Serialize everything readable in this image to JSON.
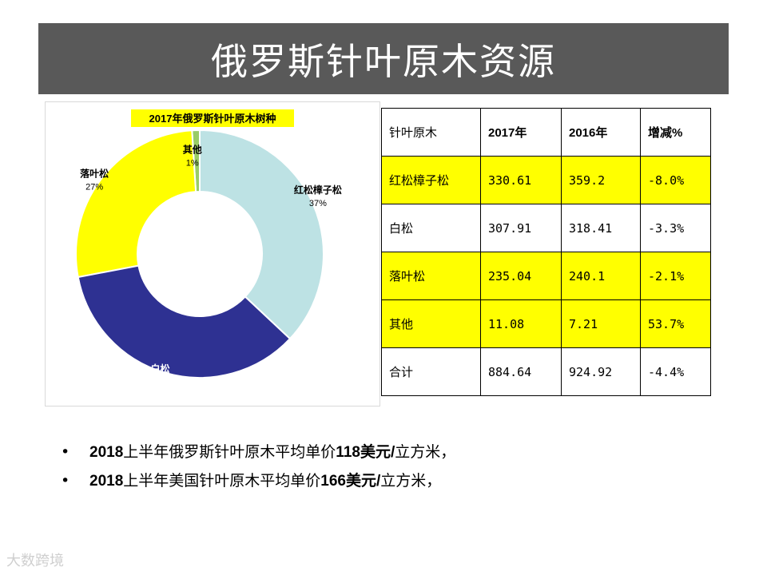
{
  "title": "俄罗斯针叶原木资源",
  "colors": {
    "slice_red_pine": "#bde2e4",
    "slice_white_pine": "#2e3192",
    "slice_larch": "#ffff00",
    "slice_other": "#99cc66",
    "title_bar": "#595959"
  },
  "chart_data": {
    "type": "pie",
    "subtype": "donut",
    "title": "2017年俄罗斯针叶原木树种",
    "categories": [
      "红松樟子松",
      "白松",
      "落叶松",
      "其他"
    ],
    "values": [
      37,
      35,
      27,
      1
    ],
    "labels": [
      "37%",
      "35%",
      "27%",
      "1%"
    ],
    "legend": "none"
  },
  "table": {
    "header": [
      "针叶原木",
      "2017年",
      "2016年",
      "增减%"
    ],
    "rows": [
      {
        "name": "红松樟子松",
        "y2017": "330.61",
        "y2016": "359.2",
        "change": "-8.0%",
        "highlight": true
      },
      {
        "name": "白松",
        "y2017": "307.91",
        "y2016": "318.41",
        "change": "-3.3%",
        "highlight": false
      },
      {
        "name": "落叶松",
        "y2017": "235.04",
        "y2016": "240.1",
        "change": "-2.1%",
        "highlight": true
      },
      {
        "name": "其他",
        "y2017": "11.08",
        "y2016": "7.21",
        "change": "53.7%",
        "highlight": true
      },
      {
        "name": "合计",
        "y2017": "884.64",
        "y2016": "924.92",
        "change": "-4.4%",
        "highlight": false
      }
    ]
  },
  "bullets": [
    {
      "year": "2018",
      "text1": "上半年俄罗斯针叶原木平均单价",
      "price": "118美元/",
      "text2": "立方米，"
    },
    {
      "year": "2018",
      "text1": "上半年美国针叶原木平均单价",
      "price": "166美元/",
      "text2": "立方米，"
    }
  ],
  "bullet_marker": "•",
  "watermark": "大数跨境"
}
